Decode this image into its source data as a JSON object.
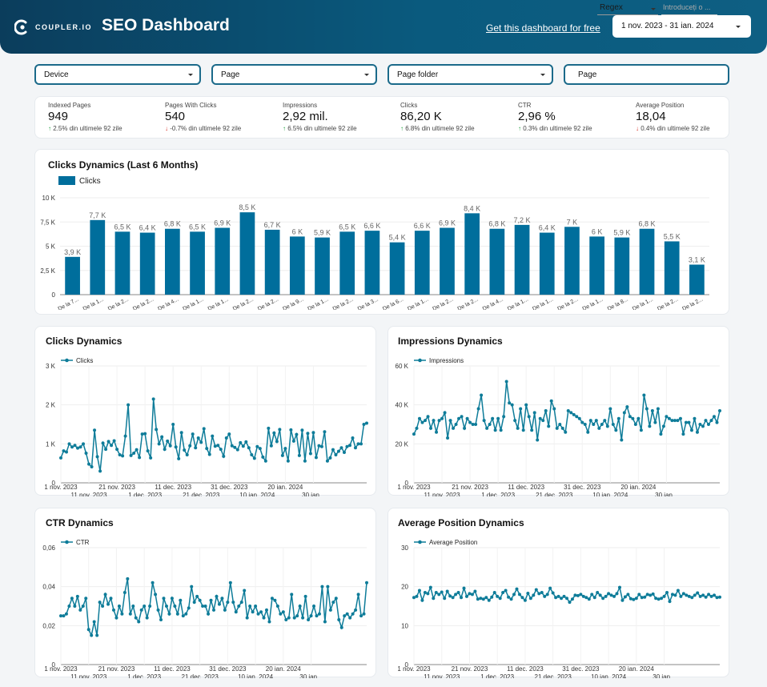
{
  "header": {
    "brand": "COUPLER.IO",
    "title": "SEO Dashboard",
    "get_link": "Get this dashboard for free",
    "date_range": "1 nov. 2023 - 31 ian. 2024",
    "colors": {
      "header_bg": "#0b4f70",
      "bar": "#006e9c",
      "line": "#0e7c99"
    }
  },
  "filters": {
    "device": "Device",
    "page": "Page",
    "page_folder": "Page folder",
    "page_label": "Page",
    "regex": "Regex",
    "regex_placeholder": "Introduceți o ..."
  },
  "kpis": [
    {
      "label": "Indexed Pages",
      "value": "949",
      "change": "2.5%",
      "direction": "up",
      "suffix": "din ultimele 92 zile"
    },
    {
      "label": "Pages With Clicks",
      "value": "540",
      "change": "-0.7%",
      "direction": "down",
      "suffix": "din ultimele 92 zile"
    },
    {
      "label": "Impressions",
      "value": "2,92 mil.",
      "change": "6.5%",
      "direction": "up",
      "suffix": "din ultimele 92 zile"
    },
    {
      "label": "Clicks",
      "value": "86,20 K",
      "change": "6.8%",
      "direction": "up",
      "suffix": "din ultimele 92 zile"
    },
    {
      "label": "CTR",
      "value": "2,96 %",
      "change": "0.3%",
      "direction": "up",
      "suffix": "din ultimele 92 zile"
    },
    {
      "label": "Average Position",
      "value": "18,04",
      "change": "0.4%",
      "direction": "down",
      "suffix": "din ultimele 92 zile"
    }
  ],
  "chart_data": [
    {
      "type": "bar",
      "title": "Clicks Dynamics (Last 6 Months)",
      "legend": "Clicks",
      "yticks": [
        "0",
        "2,5 K",
        "5 K",
        "7,5 K",
        "10 K"
      ],
      "ylim": [
        0,
        10000
      ],
      "categories": [
        "De la 7...",
        "De la 1...",
        "De la 2...",
        "De la 2...",
        "De la 4...",
        "De la 1...",
        "De la 1...",
        "De la 2...",
        "De la 2...",
        "De la 9...",
        "De la 1...",
        "De la 2...",
        "De la 3...",
        "De la 6...",
        "De la 1...",
        "De la 2...",
        "De la 2...",
        "De la 4...",
        "De la 1...",
        "De la 1...",
        "De la 2...",
        "De la 1...",
        "De la 8...",
        "De la 1...",
        "De la 2...",
        "De la 2..."
      ],
      "values": [
        3900,
        7700,
        6500,
        6400,
        6800,
        6500,
        6900,
        8500,
        6700,
        6000,
        5900,
        6500,
        6600,
        5400,
        6600,
        6900,
        8400,
        6800,
        7200,
        6400,
        7000,
        6000,
        5900,
        6800,
        5500,
        3100
      ],
      "data_labels": [
        "3,9 K",
        "7,7 K",
        "6,5 K",
        "6,4 K",
        "6,8 K",
        "6,5 K",
        "6,9 K",
        "8,5 K",
        "6,7 K",
        "6 K",
        "5,9 K",
        "6,5 K",
        "6,6 K",
        "5,4 K",
        "6,6 K",
        "6,9 K",
        "8,4 K",
        "6,8 K",
        "7,2 K",
        "6,4 K",
        "7 K",
        "6 K",
        "5,9 K",
        "6,8 K",
        "5,5 K",
        "3,1 K"
      ]
    },
    {
      "type": "line",
      "title": "Clicks Dynamics",
      "legend": "Clicks",
      "yticks": [
        "0",
        "1 K",
        "2 K",
        "3 K"
      ],
      "ylim": [
        0,
        3000
      ],
      "xticks_top": [
        "1 nov. 2023",
        "21 nov. 2023",
        "11 dec. 2023",
        "31 dec. 2023",
        "20 ian. 2024"
      ],
      "xticks_bottom": [
        "11 nov. 2023",
        "1 dec. 2023",
        "21 dec. 2023",
        "10 ian. 2024",
        "30 ian..."
      ],
      "x_start": "2023-11-01",
      "values": [
        640,
        820,
        790,
        1000,
        920,
        960,
        890,
        920,
        1000,
        760,
        480,
        410,
        1350,
        670,
        300,
        1020,
        860,
        1060,
        960,
        1080,
        860,
        720,
        690,
        1200,
        2000,
        700,
        760,
        850,
        650,
        1250,
        1260,
        820,
        640,
        2150,
        1370,
        1000,
        1180,
        860,
        1070,
        950,
        1500,
        920,
        620,
        1290,
        840,
        720,
        950,
        1250,
        900,
        1150,
        1040,
        1390,
        880,
        730,
        1200,
        940,
        960,
        860,
        680,
        1150,
        1250,
        950,
        910,
        850,
        1030,
        940,
        1050,
        900,
        720,
        630,
        930,
        880,
        660,
        560,
        1400,
        950,
        1280,
        1060,
        1370,
        700,
        880,
        560,
        1360,
        1070,
        1240,
        700,
        1350,
        560,
        1270,
        750,
        1290,
        650,
        950,
        930,
        1310,
        560,
        640,
        850,
        720,
        810,
        900,
        780,
        930,
        960,
        1150,
        900,
        1000,
        1000,
        1500,
        1530
      ]
    },
    {
      "type": "line",
      "title": "Impressions Dynamics",
      "legend": "Impressions",
      "yticks": [
        "0",
        "20 K",
        "40 K",
        "60 K"
      ],
      "ylim": [
        0,
        60000
      ],
      "xticks_top": [
        "1 nov. 2023",
        "21 nov. 2023",
        "11 dec. 2023",
        "31 dec. 2023",
        "20 ian. 2024"
      ],
      "xticks_bottom": [
        "11 nov. 2023",
        "1 dec. 2023",
        "21 dec. 2023",
        "10 ian. 2024",
        "30 ian..."
      ],
      "x_start": "2023-11-01",
      "values": [
        25000,
        28000,
        33000,
        31000,
        32000,
        34000,
        28000,
        32000,
        26000,
        32000,
        33000,
        36000,
        23000,
        32000,
        28000,
        30000,
        33000,
        34000,
        28000,
        33000,
        31000,
        30000,
        30000,
        38000,
        45000,
        32000,
        28000,
        30000,
        33000,
        27000,
        33000,
        27000,
        34000,
        52000,
        41000,
        40000,
        32000,
        28000,
        38000,
        27000,
        40000,
        34000,
        27000,
        36000,
        22000,
        33000,
        32000,
        37000,
        29000,
        42000,
        38000,
        28000,
        30000,
        28000,
        26000,
        37000,
        36000,
        35000,
        34000,
        33000,
        31000,
        30000,
        26000,
        32000,
        30000,
        32000,
        28000,
        30000,
        32000,
        29000,
        38000,
        30000,
        27000,
        33000,
        22000,
        36000,
        39000,
        34000,
        33000,
        30000,
        33000,
        27000,
        45000,
        38000,
        29000,
        37000,
        31000,
        38000,
        25000,
        29000,
        34000,
        33000,
        32000,
        32000,
        32000,
        33000,
        25000,
        31000,
        31000,
        27000,
        33000,
        26000,
        30000,
        29000,
        32000,
        30000,
        32000,
        34000,
        31000,
        37000
      ]
    },
    {
      "type": "line",
      "title": "CTR Dynamics",
      "legend": "CTR",
      "yticks": [
        "0",
        "0,02",
        "0,04",
        "0,06"
      ],
      "ylim": [
        0,
        0.06
      ],
      "xticks_top": [
        "1 nov. 2023",
        "21 nov. 2023",
        "11 dec. 2023",
        "31 dec. 2023",
        "20 ian. 2024"
      ],
      "xticks_bottom": [
        "11 nov. 2023",
        "1 dec. 2023",
        "21 dec. 2023",
        "10 ian. 2024",
        "30 ian..."
      ],
      "x_start": "2023-11-01",
      "values": [
        0.025,
        0.025,
        0.026,
        0.03,
        0.034,
        0.03,
        0.035,
        0.028,
        0.03,
        0.034,
        0.018,
        0.015,
        0.022,
        0.015,
        0.032,
        0.03,
        0.036,
        0.031,
        0.034,
        0.028,
        0.024,
        0.03,
        0.026,
        0.037,
        0.044,
        0.026,
        0.03,
        0.024,
        0.022,
        0.028,
        0.03,
        0.024,
        0.03,
        0.042,
        0.036,
        0.028,
        0.023,
        0.034,
        0.03,
        0.026,
        0.034,
        0.03,
        0.026,
        0.033,
        0.025,
        0.026,
        0.029,
        0.04,
        0.032,
        0.035,
        0.033,
        0.03,
        0.03,
        0.026,
        0.033,
        0.028,
        0.035,
        0.031,
        0.034,
        0.028,
        0.032,
        0.042,
        0.032,
        0.027,
        0.03,
        0.032,
        0.038,
        0.024,
        0.03,
        0.027,
        0.03,
        0.026,
        0.027,
        0.024,
        0.028,
        0.022,
        0.034,
        0.033,
        0.03,
        0.026,
        0.027,
        0.023,
        0.024,
        0.036,
        0.024,
        0.025,
        0.03,
        0.024,
        0.035,
        0.023,
        0.025,
        0.03,
        0.025,
        0.026,
        0.04,
        0.022,
        0.04,
        0.028,
        0.032,
        0.034,
        0.023,
        0.019,
        0.025,
        0.026,
        0.024,
        0.026,
        0.028,
        0.036,
        0.025,
        0.026,
        0.042
      ]
    },
    {
      "type": "line",
      "title": "Average Position Dynamics",
      "legend": "Average Position",
      "yticks": [
        "0",
        "10",
        "20",
        "30"
      ],
      "ylim": [
        0,
        30
      ],
      "xticks_top": [
        "1 nov. 2023",
        "21 nov. 2023",
        "11 dec. 2023",
        "31 dec. 2023",
        "20 ian. 2024"
      ],
      "xticks_bottom": [
        "11 nov. 2023",
        "1 dec. 2023",
        "21 dec. 2023",
        "10 ian. 2024",
        "30 ian..."
      ],
      "x_start": "2023-11-01",
      "values": [
        17.2,
        17.5,
        19.0,
        16.5,
        18.5,
        18.2,
        19.8,
        17.0,
        18.5,
        18.0,
        18.6,
        17.0,
        18.8,
        17.6,
        17.2,
        18.0,
        18.5,
        17.2,
        19.6,
        17.5,
        18.2,
        18.0,
        18.8,
        16.8,
        17.0,
        16.8,
        17.2,
        16.5,
        17.3,
        18.5,
        17.5,
        17.0,
        18.5,
        19.0,
        17.3,
        16.8,
        18.0,
        19.4,
        18.0,
        17.2,
        16.5,
        18.3,
        17.0,
        17.8,
        19.2,
        18.2,
        18.5,
        17.5,
        18.0,
        19.6,
        18.4,
        17.2,
        17.5,
        17.0,
        17.5,
        17.0,
        16.0,
        16.8,
        17.8,
        17.7,
        18.0,
        17.5,
        17.2,
        16.8,
        18.0,
        17.2,
        18.5,
        17.8,
        17.0,
        17.5,
        18.2,
        17.8,
        17.5,
        18.2,
        19.8,
        16.5,
        17.4,
        18.0,
        16.9,
        16.7,
        17.0,
        18.0,
        17.2,
        17.3,
        18.0,
        17.8,
        18.1,
        17.0,
        16.8,
        17.0,
        17.5,
        18.5,
        16.2,
        18.0,
        17.8,
        19.0,
        17.5,
        18.2,
        17.8,
        17.5,
        17.2,
        17.8,
        18.4,
        17.5,
        17.8,
        17.3,
        18.0,
        17.5,
        17.8,
        17.2,
        17.3
      ]
    }
  ]
}
